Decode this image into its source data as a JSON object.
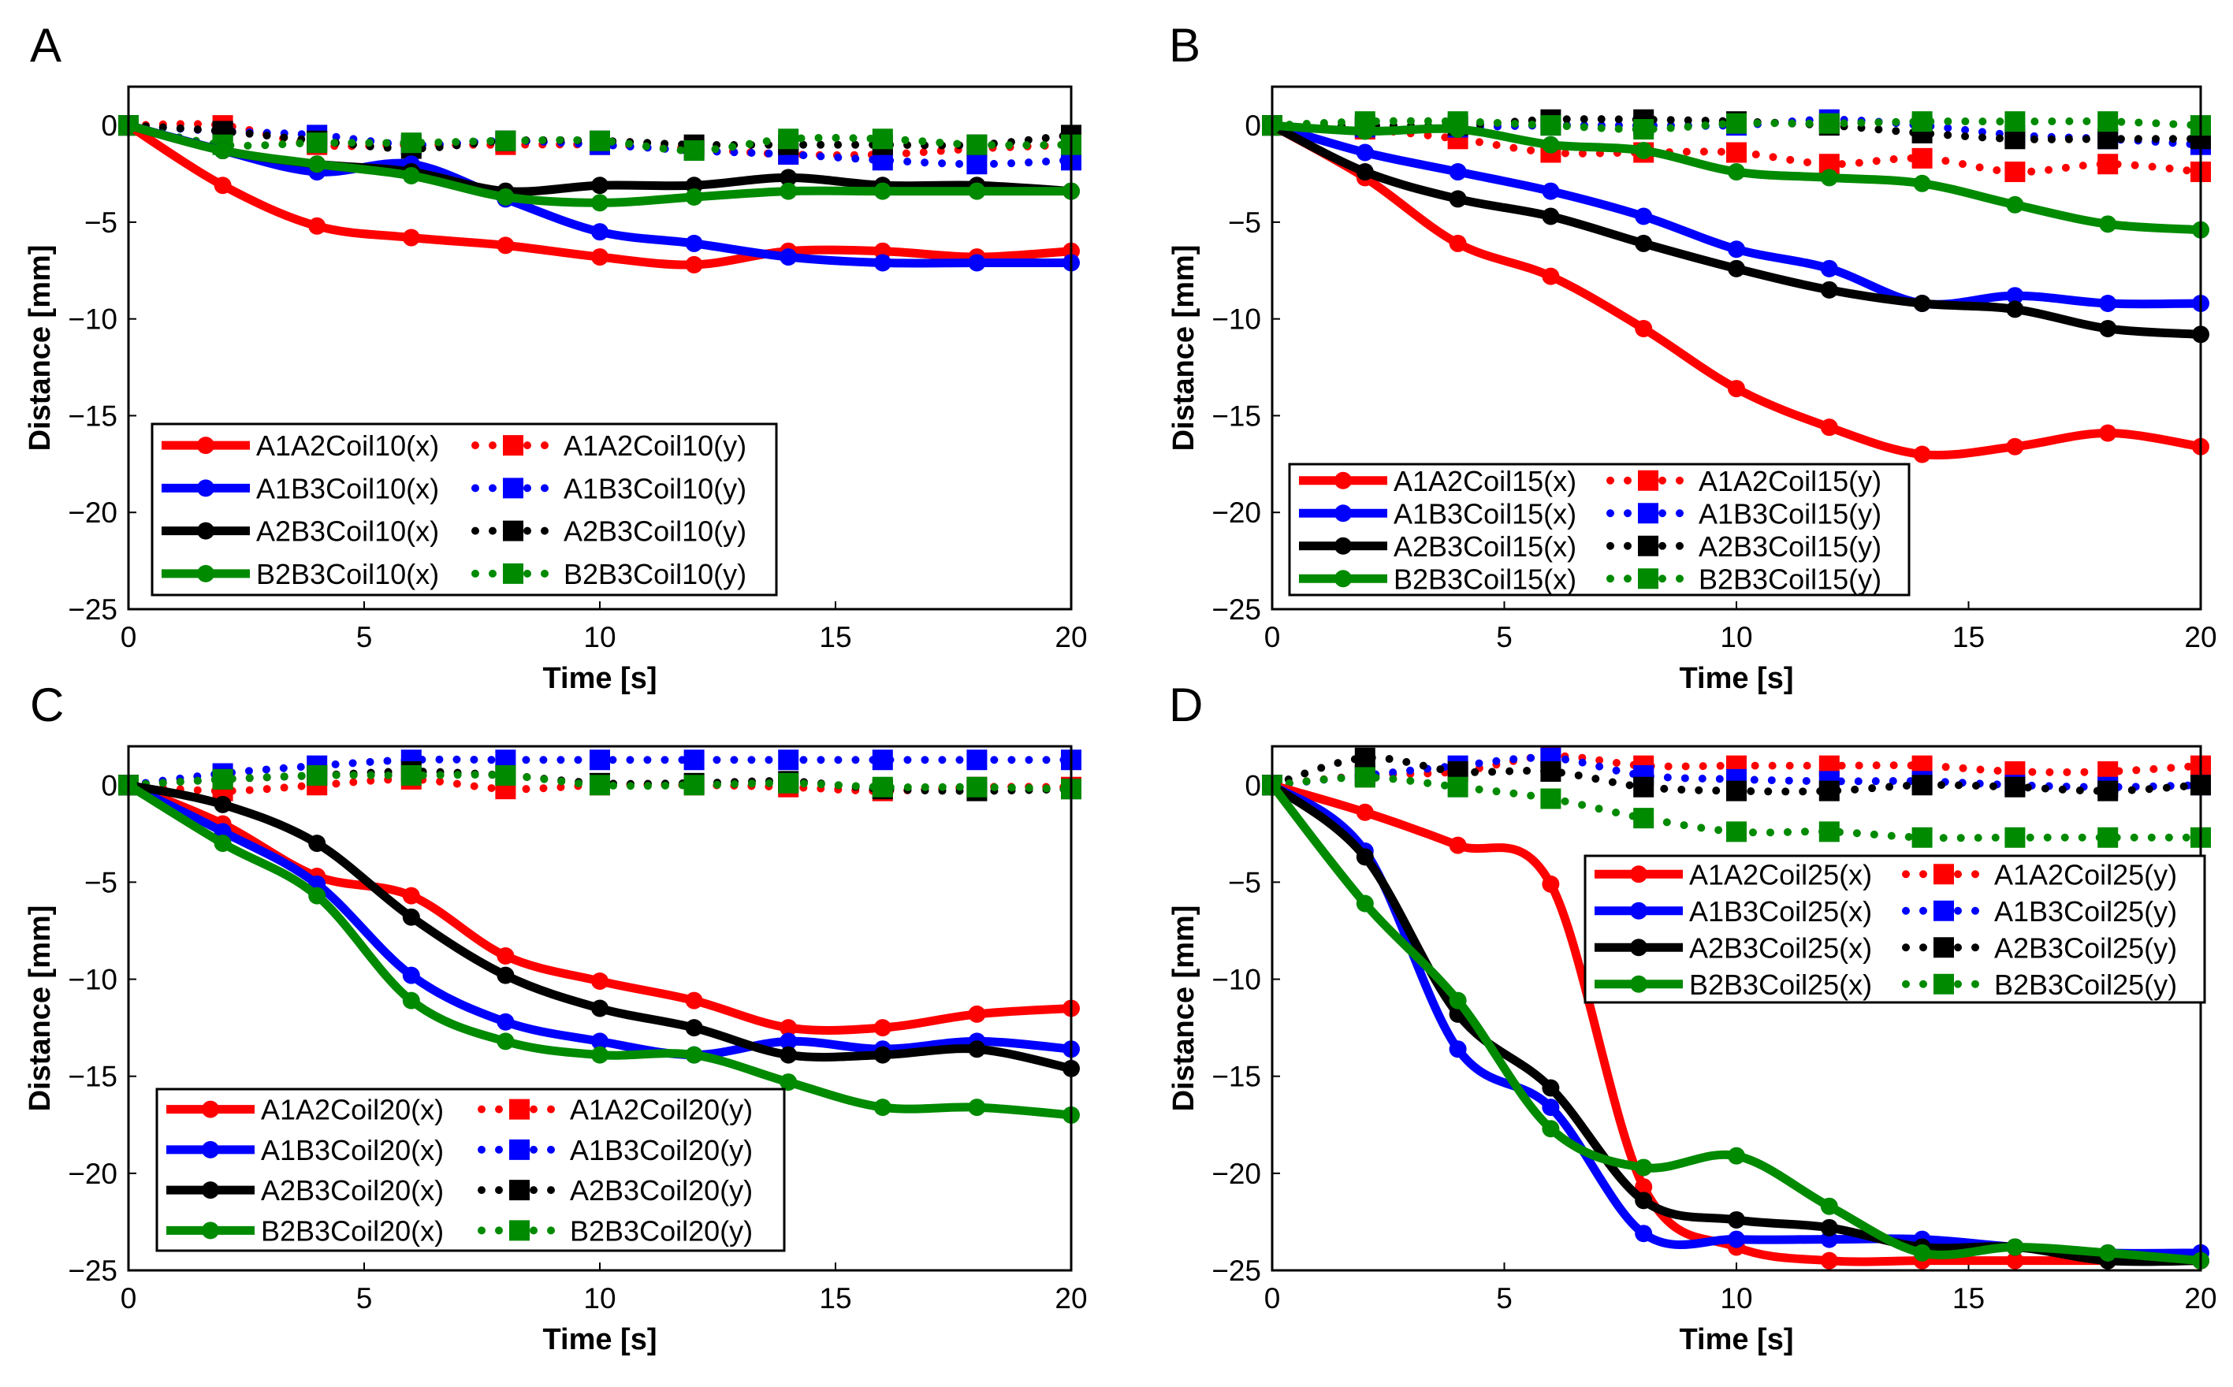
{
  "colors": {
    "A1A2": "#ff0000",
    "A1B3": "#0000ff",
    "A2B3": "#000000",
    "B2B3": "#008a00"
  },
  "chart_data": [
    {
      "type": "line",
      "panel": "A",
      "xlabel": "Time [s]",
      "ylabel": "Distance [mm]",
      "xlim": [
        0,
        20
      ],
      "ylim": [
        -25,
        2
      ],
      "xticks": [
        0,
        5,
        10,
        15,
        20
      ],
      "yticks": [
        0,
        -5,
        -10,
        -15,
        -20,
        -25
      ],
      "grid": false,
      "legend_placement": "bottom-left",
      "x": [
        0,
        2,
        4,
        6,
        8,
        10,
        12,
        14,
        16,
        18,
        20
      ],
      "series": [
        {
          "name": "A1A2Coil10(x)",
          "pair": "A1A2",
          "style": "solid",
          "values": [
            0,
            -3.1,
            -5.2,
            -5.8,
            -6.2,
            -6.8,
            -7.2,
            -6.5,
            -6.5,
            -6.8,
            -6.5
          ]
        },
        {
          "name": "A1B3Coil10(x)",
          "pair": "A1B3",
          "style": "solid",
          "values": [
            0,
            -1.3,
            -2.4,
            -2.0,
            -3.8,
            -5.5,
            -6.1,
            -6.8,
            -7.1,
            -7.1,
            -7.1
          ]
        },
        {
          "name": "A2B3Coil10(x)",
          "pair": "A2B3",
          "style": "solid",
          "values": [
            0,
            -1.3,
            -2.0,
            -2.4,
            -3.4,
            -3.1,
            -3.1,
            -2.7,
            -3.1,
            -3.1,
            -3.4
          ]
        },
        {
          "name": "B2B3Coil10(x)",
          "pair": "B2B3",
          "style": "solid",
          "values": [
            0,
            -1.3,
            -2.0,
            -2.6,
            -3.7,
            -4.0,
            -3.7,
            -3.4,
            -3.4,
            -3.4,
            -3.4
          ]
        },
        {
          "name": "A1A2Coil10(y)",
          "pair": "A1A2",
          "style": "dotted",
          "values": [
            0,
            0,
            -1.0,
            -1.0,
            -1.0,
            -1.0,
            -1.2,
            -1.5,
            -1.5,
            -1.2,
            -1.0
          ]
        },
        {
          "name": "A1B3Coil10(y)",
          "pair": "A1B3",
          "style": "dotted",
          "values": [
            0,
            -0.3,
            -0.5,
            -1.0,
            -0.8,
            -1.0,
            -1.3,
            -1.5,
            -1.8,
            -2.0,
            -1.8
          ]
        },
        {
          "name": "A2B3Coil10(y)",
          "pair": "A2B3",
          "style": "dotted",
          "values": [
            0,
            -0.3,
            -0.8,
            -1.2,
            -0.8,
            -0.8,
            -1.0,
            -1.0,
            -1.0,
            -1.0,
            -0.5
          ]
        },
        {
          "name": "B2B3Coil10(y)",
          "pair": "B2B3",
          "style": "dotted",
          "values": [
            0,
            -1.0,
            -0.9,
            -0.9,
            -0.8,
            -0.8,
            -1.3,
            -0.7,
            -0.7,
            -1.0,
            -1.0
          ]
        }
      ]
    },
    {
      "type": "line",
      "panel": "B",
      "xlabel": "Time [s]",
      "ylabel": "Distance [mm]",
      "xlim": [
        0,
        20
      ],
      "ylim": [
        -25,
        2
      ],
      "xticks": [
        0,
        5,
        10,
        15,
        20
      ],
      "yticks": [
        0,
        -5,
        -10,
        -15,
        -20,
        -25
      ],
      "grid": false,
      "legend_placement": "bottom-left",
      "x": [
        0,
        2,
        4,
        6,
        8,
        10,
        12,
        14,
        16,
        18,
        20
      ],
      "series": [
        {
          "name": "A1A2Coil15(x)",
          "pair": "A1A2",
          "style": "solid",
          "values": [
            0,
            -2.7,
            -6.1,
            -7.8,
            -10.5,
            -13.6,
            -15.6,
            -17.0,
            -16.6,
            -15.9,
            -16.6
          ]
        },
        {
          "name": "A1B3Coil15(x)",
          "pair": "A1B3",
          "style": "solid",
          "values": [
            0,
            -1.4,
            -2.4,
            -3.4,
            -4.7,
            -6.4,
            -7.4,
            -9.2,
            -8.8,
            -9.2,
            -9.2
          ]
        },
        {
          "name": "A2B3Coil15(x)",
          "pair": "A2B3",
          "style": "solid",
          "values": [
            0,
            -2.4,
            -3.8,
            -4.7,
            -6.1,
            -7.4,
            -8.5,
            -9.2,
            -9.5,
            -10.5,
            -10.8
          ]
        },
        {
          "name": "B2B3Coil15(x)",
          "pair": "B2B3",
          "style": "solid",
          "values": [
            0,
            -0.3,
            -0.2,
            -1.0,
            -1.3,
            -2.4,
            -2.7,
            -3.0,
            -4.1,
            -5.1,
            -5.4
          ]
        },
        {
          "name": "A1A2Coil15(y)",
          "pair": "A1A2",
          "style": "dotted",
          "values": [
            0,
            -0.2,
            -0.7,
            -1.4,
            -1.4,
            -1.4,
            -2.0,
            -1.7,
            -2.4,
            -2.0,
            -2.4
          ]
        },
        {
          "name": "A1B3Coil15(y)",
          "pair": "A1B3",
          "style": "dotted",
          "values": [
            0,
            -0.1,
            -0.1,
            0,
            0,
            0,
            0.3,
            0,
            -0.5,
            -0.7,
            -1.0
          ]
        },
        {
          "name": "A2B3Coil15(y)",
          "pair": "A2B3",
          "style": "dotted",
          "values": [
            0,
            0,
            0,
            0.3,
            0.3,
            0.2,
            0,
            -0.4,
            -0.7,
            -0.7,
            -0.7
          ]
        },
        {
          "name": "B2B3Coil15(y)",
          "pair": "B2B3",
          "style": "dotted",
          "values": [
            0,
            0.2,
            0.2,
            0,
            -0.2,
            0.1,
            0.1,
            0.2,
            0.2,
            0.2,
            0
          ]
        }
      ]
    },
    {
      "type": "line",
      "panel": "C",
      "xlabel": "Time [s]",
      "ylabel": "Distance [mm]",
      "xlim": [
        0,
        20
      ],
      "ylim": [
        -25,
        2
      ],
      "xticks": [
        0,
        5,
        10,
        15,
        20
      ],
      "yticks": [
        0,
        -5,
        -10,
        -15,
        -20,
        -25
      ],
      "grid": false,
      "legend_placement": "bottom-left",
      "x": [
        0,
        2,
        4,
        6,
        8,
        10,
        12,
        14,
        16,
        18,
        20
      ],
      "series": [
        {
          "name": "A1A2Coil20(x)",
          "pair": "A1A2",
          "style": "solid",
          "values": [
            0,
            -2.0,
            -4.7,
            -5.7,
            -8.8,
            -10.1,
            -11.1,
            -12.5,
            -12.5,
            -11.8,
            -11.5
          ]
        },
        {
          "name": "A1B3Coil20(x)",
          "pair": "A1B3",
          "style": "solid",
          "values": [
            0,
            -2.4,
            -5.1,
            -9.8,
            -12.2,
            -13.2,
            -13.9,
            -13.2,
            -13.6,
            -13.2,
            -13.6
          ]
        },
        {
          "name": "A2B3Coil20(x)",
          "pair": "A2B3",
          "style": "solid",
          "values": [
            0,
            -1.0,
            -3.0,
            -6.8,
            -9.8,
            -11.5,
            -12.5,
            -13.9,
            -13.9,
            -13.6,
            -14.6
          ]
        },
        {
          "name": "B2B3Coil20(x)",
          "pair": "B2B3",
          "style": "solid",
          "values": [
            0,
            -3.0,
            -5.7,
            -11.1,
            -13.2,
            -13.9,
            -13.9,
            -15.3,
            -16.6,
            -16.6,
            -17.0
          ]
        },
        {
          "name": "A1A2Coil20(y)",
          "pair": "A1A2",
          "style": "dotted",
          "values": [
            0,
            -0.3,
            0,
            0.3,
            -0.2,
            0,
            0,
            -0.1,
            -0.3,
            -0.1,
            -0.1
          ]
        },
        {
          "name": "A1B3Coil20(y)",
          "pair": "A1B3",
          "style": "dotted",
          "values": [
            0,
            0.6,
            1.0,
            1.3,
            1.3,
            1.3,
            1.3,
            1.3,
            1.3,
            1.3,
            1.3
          ]
        },
        {
          "name": "A2B3Coil20(y)",
          "pair": "A2B3",
          "style": "dotted",
          "values": [
            0,
            0.3,
            0.5,
            0.7,
            0.5,
            0.1,
            0.1,
            0.2,
            -0.2,
            -0.3,
            -0.2
          ]
        },
        {
          "name": "B2B3Coil20(y)",
          "pair": "B2B3",
          "style": "dotted",
          "values": [
            0,
            0.3,
            0.5,
            0.5,
            0.5,
            0,
            0,
            0.1,
            -0.1,
            -0.1,
            -0.2
          ]
        }
      ]
    },
    {
      "type": "line",
      "panel": "D",
      "xlabel": "Time [s]",
      "ylabel": "Distance [mm]",
      "xlim": [
        0,
        20
      ],
      "ylim": [
        -25,
        2
      ],
      "xticks": [
        0,
        5,
        10,
        15,
        20
      ],
      "yticks": [
        0,
        -5,
        -10,
        -15,
        -20,
        -25
      ],
      "grid": false,
      "legend_placement": "top-right",
      "x": [
        0,
        2,
        4,
        6,
        8,
        10,
        12,
        14,
        16,
        18,
        20
      ],
      "series": [
        {
          "name": "A1A2Coil25(x)",
          "pair": "A1A2",
          "style": "solid",
          "values": [
            0,
            -1.4,
            -3.1,
            -5.1,
            -20.7,
            -23.8,
            -24.5,
            -24.5,
            -24.5,
            -24.5,
            -24.5
          ]
        },
        {
          "name": "A1B3Coil25(x)",
          "pair": "A1B3",
          "style": "solid",
          "values": [
            0,
            -3.4,
            -13.6,
            -16.6,
            -23.1,
            -23.4,
            -23.4,
            -23.4,
            -23.8,
            -24.1,
            -24.1
          ]
        },
        {
          "name": "A2B3Coil25(x)",
          "pair": "A2B3",
          "style": "solid",
          "values": [
            0,
            -3.7,
            -11.8,
            -15.6,
            -21.4,
            -22.4,
            -22.8,
            -23.8,
            -23.8,
            -24.5,
            -24.5
          ]
        },
        {
          "name": "B2B3Coil25(x)",
          "pair": "B2B3",
          "style": "solid",
          "values": [
            0,
            -6.1,
            -11.1,
            -17.7,
            -19.7,
            -19.1,
            -21.7,
            -24.1,
            -23.8,
            -24.1,
            -24.5
          ]
        },
        {
          "name": "A1A2Coil25(y)",
          "pair": "A1A2",
          "style": "dotted",
          "values": [
            0,
            0.5,
            0.7,
            1.5,
            1.0,
            1.0,
            1.0,
            1.0,
            0.7,
            0.7,
            1.0
          ]
        },
        {
          "name": "A1B3Coil25(y)",
          "pair": "A1B3",
          "style": "dotted",
          "values": [
            0,
            0.5,
            1.0,
            1.4,
            0.5,
            0.3,
            0.2,
            0.2,
            0,
            -0.1,
            0
          ]
        },
        {
          "name": "A2B3Coil25(y)",
          "pair": "A2B3",
          "style": "dotted",
          "values": [
            0,
            1.4,
            0.7,
            0.7,
            -0.1,
            -0.3,
            -0.3,
            0,
            -0.1,
            -0.3,
            0
          ]
        },
        {
          "name": "B2B3Coil25(y)",
          "pair": "B2B3",
          "style": "dotted",
          "values": [
            0,
            0.4,
            -0.1,
            -0.7,
            -1.7,
            -2.4,
            -2.4,
            -2.7,
            -2.7,
            -2.7,
            -2.7
          ]
        }
      ]
    }
  ]
}
